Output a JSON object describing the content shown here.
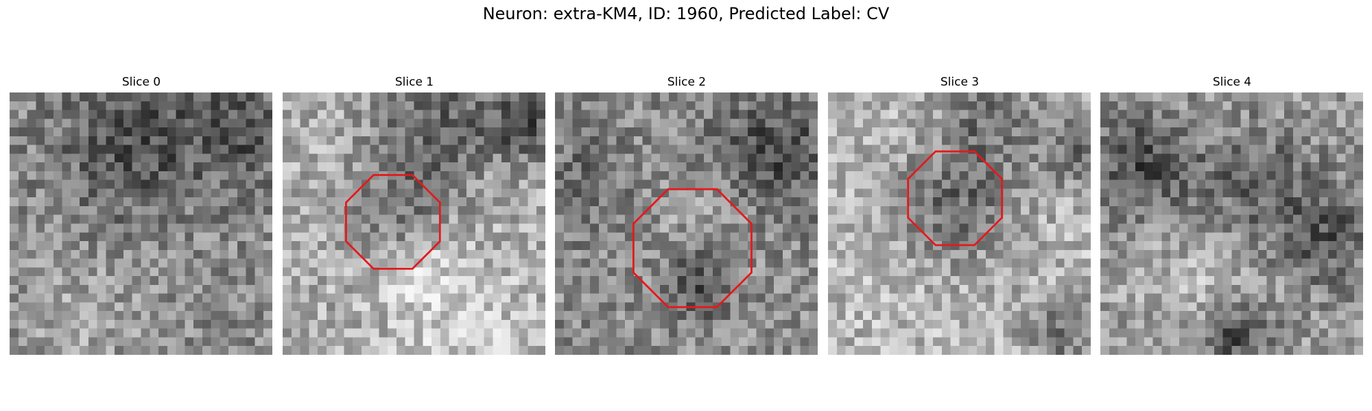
{
  "figure": {
    "title": "Neuron: extra-KM4, ID: 1960, Predicted Label: CV"
  },
  "slices": [
    {
      "title": "Slice 0"
    },
    {
      "title": "Slice 1"
    },
    {
      "title": "Slice 2"
    },
    {
      "title": "Slice 3"
    },
    {
      "title": "Slice 4"
    }
  ],
  "colors": {
    "outline": "#e31a1c"
  }
}
